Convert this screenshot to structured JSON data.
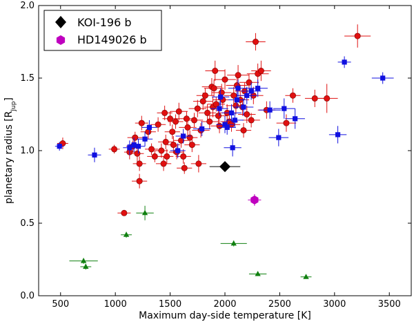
{
  "chart_data": {
    "type": "scatter",
    "xlabel": "Maximum day-side temperature [K]",
    "ylabel_main": "planetary radius [R",
    "ylabel_sub": "Jup",
    "ylabel_end": "]",
    "xlim": [
      300,
      3700
    ],
    "ylim": [
      0.0,
      2.0
    ],
    "xticks": [
      500,
      1000,
      1500,
      2000,
      2500,
      3000,
      3500
    ],
    "yticks": [
      0.0,
      0.5,
      1.0,
      1.5,
      2.0
    ],
    "ytick_labels": [
      "0.0",
      "0.5",
      "1.0",
      "1.5",
      "2.0"
    ],
    "legend": [
      {
        "label": "KOI-196 b",
        "marker": "diamond",
        "color": "#000000"
      },
      {
        "label": "HD149026 b",
        "marker": "hexagon",
        "color": "#bf00bf"
      }
    ],
    "series": [
      {
        "name": "red",
        "marker": "circle",
        "color": "#e01010",
        "points": [
          [
            520,
            1.05,
            50,
            0.04
          ],
          [
            990,
            1.01,
            50,
            0.03
          ],
          [
            1080,
            0.57,
            60,
            0.02
          ],
          [
            1130,
            0.99,
            50,
            0.05
          ],
          [
            1160,
            1.03,
            60,
            0.04
          ],
          [
            1180,
            1.09,
            70,
            0.04
          ],
          [
            1200,
            0.98,
            60,
            0.06
          ],
          [
            1220,
            0.91,
            60,
            0.05
          ],
          [
            1220,
            0.79,
            70,
            0.05
          ],
          [
            1240,
            1.19,
            60,
            0.05
          ],
          [
            1300,
            1.13,
            70,
            0.05
          ],
          [
            1330,
            1.01,
            60,
            0.04
          ],
          [
            1360,
            0.96,
            70,
            0.04
          ],
          [
            1390,
            1.18,
            70,
            0.05
          ],
          [
            1420,
            1.0,
            60,
            0.05
          ],
          [
            1440,
            0.91,
            70,
            0.05
          ],
          [
            1450,
            1.26,
            70,
            0.05
          ],
          [
            1460,
            1.06,
            70,
            0.05
          ],
          [
            1470,
            0.96,
            60,
            0.05
          ],
          [
            1500,
            1.22,
            70,
            0.05
          ],
          [
            1520,
            1.13,
            70,
            0.05
          ],
          [
            1530,
            1.04,
            60,
            0.06
          ],
          [
            1550,
            1.2,
            70,
            0.05
          ],
          [
            1560,
            0.99,
            70,
            0.05
          ],
          [
            1580,
            1.27,
            80,
            0.06
          ],
          [
            1600,
            1.07,
            70,
            0.05
          ],
          [
            1620,
            0.96,
            70,
            0.05
          ],
          [
            1630,
            0.88,
            70,
            0.04
          ],
          [
            1650,
            1.22,
            80,
            0.05
          ],
          [
            1660,
            1.16,
            80,
            0.06
          ],
          [
            1680,
            1.09,
            70,
            0.05
          ],
          [
            1700,
            1.04,
            70,
            0.05
          ],
          [
            1720,
            1.21,
            80,
            0.05
          ],
          [
            1750,
            1.29,
            80,
            0.06
          ],
          [
            1760,
            0.91,
            70,
            0.06
          ],
          [
            1780,
            1.14,
            80,
            0.05
          ],
          [
            1800,
            1.34,
            90,
            0.06
          ],
          [
            1820,
            1.38,
            80,
            0.05
          ],
          [
            1840,
            1.26,
            80,
            0.06
          ],
          [
            1860,
            1.2,
            80,
            0.05
          ],
          [
            1880,
            1.44,
            90,
            0.06
          ],
          [
            1890,
            1.3,
            80,
            0.07
          ],
          [
            1900,
            1.43,
            90,
            0.06
          ],
          [
            1910,
            1.55,
            90,
            0.07
          ],
          [
            1920,
            1.32,
            80,
            0.05
          ],
          [
            1940,
            1.24,
            80,
            0.06
          ],
          [
            1950,
            1.17,
            80,
            0.05
          ],
          [
            1970,
            1.4,
            90,
            0.06
          ],
          [
            1980,
            1.35,
            90,
            0.06
          ],
          [
            2000,
            1.49,
            100,
            0.07
          ],
          [
            2020,
            1.26,
            80,
            0.06
          ],
          [
            2040,
            1.2,
            80,
            0.05
          ],
          [
            2060,
            1.18,
            80,
            0.05
          ],
          [
            2080,
            1.38,
            90,
            0.06
          ],
          [
            2100,
            1.31,
            90,
            0.06
          ],
          [
            2110,
            1.45,
            100,
            0.07
          ],
          [
            2120,
            1.52,
            100,
            0.07
          ],
          [
            2140,
            1.35,
            80,
            0.06
          ],
          [
            2160,
            1.3,
            80,
            0.06
          ],
          [
            2170,
            1.14,
            70,
            0.05
          ],
          [
            2180,
            1.41,
            90,
            0.06
          ],
          [
            2200,
            1.25,
            80,
            0.06
          ],
          [
            2220,
            1.47,
            90,
            0.06
          ],
          [
            2240,
            1.21,
            80,
            0.05
          ],
          [
            2260,
            1.38,
            90,
            0.06
          ],
          [
            2280,
            1.75,
            90,
            0.06
          ],
          [
            2300,
            1.53,
            100,
            0.07
          ],
          [
            2330,
            1.55,
            90,
            0.07
          ],
          [
            2380,
            1.28,
            80,
            0.06
          ],
          [
            2560,
            1.19,
            90,
            0.06
          ],
          [
            2620,
            1.38,
            70,
            0.05
          ],
          [
            2820,
            1.36,
            90,
            0.06
          ],
          [
            2930,
            1.36,
            100,
            0.1
          ],
          [
            3210,
            1.79,
            120,
            0.08
          ]
        ]
      },
      {
        "name": "blue",
        "marker": "square",
        "color": "#1010e0",
        "points": [
          [
            490,
            1.03,
            40,
            0.03
          ],
          [
            810,
            0.97,
            60,
            0.05
          ],
          [
            1130,
            1.02,
            60,
            0.05
          ],
          [
            1170,
            1.04,
            60,
            0.05
          ],
          [
            1210,
            1.03,
            60,
            0.05
          ],
          [
            1270,
            1.08,
            70,
            0.05
          ],
          [
            1310,
            1.16,
            70,
            0.05
          ],
          [
            1570,
            1.0,
            70,
            0.05
          ],
          [
            1620,
            1.1,
            70,
            0.05
          ],
          [
            1790,
            1.15,
            80,
            0.05
          ],
          [
            1950,
            1.29,
            80,
            0.05
          ],
          [
            1960,
            1.37,
            80,
            0.06
          ],
          [
            2000,
            1.18,
            80,
            0.06
          ],
          [
            2020,
            1.16,
            80,
            0.05
          ],
          [
            2060,
            1.26,
            90,
            0.06
          ],
          [
            2070,
            1.02,
            80,
            0.06
          ],
          [
            2090,
            1.21,
            80,
            0.05
          ],
          [
            2110,
            1.35,
            80,
            0.06
          ],
          [
            2120,
            1.43,
            90,
            0.06
          ],
          [
            2170,
            1.3,
            90,
            0.06
          ],
          [
            2200,
            1.38,
            90,
            0.06
          ],
          [
            2240,
            1.41,
            90,
            0.06
          ],
          [
            2300,
            1.43,
            90,
            0.06
          ],
          [
            2410,
            1.28,
            100,
            0.06
          ],
          [
            2490,
            1.09,
            90,
            0.06
          ],
          [
            2540,
            1.29,
            100,
            0.07
          ],
          [
            2640,
            1.22,
            90,
            0.07
          ],
          [
            3030,
            1.11,
            80,
            0.06
          ],
          [
            3090,
            1.61,
            60,
            0.04
          ],
          [
            3440,
            1.5,
            100,
            0.04
          ]
        ]
      },
      {
        "name": "green",
        "marker": "triangle",
        "color": "#108010",
        "points": [
          [
            710,
            0.24,
            130,
            0.02
          ],
          [
            730,
            0.2,
            50,
            0.02
          ],
          [
            1100,
            0.42,
            50,
            0.02
          ],
          [
            1270,
            0.57,
            80,
            0.05
          ],
          [
            2080,
            0.36,
            120,
            0.02
          ],
          [
            2300,
            0.15,
            80,
            0.01
          ],
          [
            2740,
            0.13,
            50,
            0.01
          ]
        ]
      },
      {
        "name": "KOI-196 b",
        "marker": "diamond",
        "color": "#000000",
        "points": [
          [
            2000,
            0.89,
            140,
            0.03
          ]
        ]
      },
      {
        "name": "HD149026 b",
        "marker": "hexagon",
        "color": "#bf00bf",
        "points": [
          [
            2270,
            0.66,
            60,
            0.04
          ]
        ]
      }
    ]
  }
}
